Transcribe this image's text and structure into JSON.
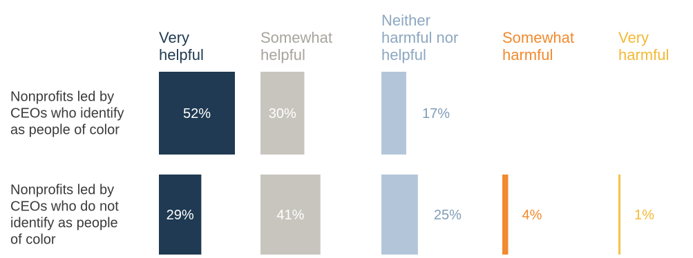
{
  "chart_data": {
    "type": "bar",
    "title": "",
    "xlabel": "",
    "ylabel": "",
    "xlim": [
      0,
      60
    ],
    "grid": false,
    "legend": "top",
    "categories": [
      "Nonprofits led by CEOs who identify as people of color",
      "Nonprofits led by CEOs who do not identify as people of color"
    ],
    "category_lines": [
      [
        "Nonprofits led by",
        "CEOs who identify",
        "as people of color"
      ],
      [
        "Nonprofits led by",
        "CEOs who do not",
        "identify as people",
        "of color"
      ]
    ],
    "series": [
      {
        "name": "Very helpful",
        "header_lines": [
          "Very",
          "helpful"
        ],
        "color": "#1f3a52",
        "header_color": "#1f3a52",
        "label_color": "#ffffff",
        "values": [
          52,
          29
        ],
        "labels": [
          "52%",
          "29%"
        ]
      },
      {
        "name": "Somewhat helpful",
        "header_lines": [
          "Somewhat",
          "helpful"
        ],
        "color": "#c8c5be",
        "header_color": "#a7a49c",
        "label_color": "#ffffff",
        "values": [
          30,
          41
        ],
        "labels": [
          "30%",
          "41%"
        ]
      },
      {
        "name": "Neither harmful nor helpful",
        "header_lines": [
          "Neither",
          "harmful nor",
          "helpful"
        ],
        "color": "#b3c6d9",
        "header_color": "#8ca7c1",
        "label_color": "#7f9cb8",
        "values": [
          17,
          25
        ],
        "labels": [
          "17%",
          "25%"
        ]
      },
      {
        "name": "Somewhat harmful",
        "header_lines": [
          "Somewhat",
          "harmful"
        ],
        "color": "#f28a2e",
        "header_color": "#f28a2e",
        "label_color": "#f28a2e",
        "values": [
          0,
          4
        ],
        "labels": [
          "",
          "4%"
        ]
      },
      {
        "name": "Very harmful",
        "header_lines": [
          "Very",
          "harmful"
        ],
        "color": "#f6c24a",
        "header_color": "#f3b935",
        "label_color": "#f3b935",
        "values": [
          0,
          1
        ],
        "labels": [
          "",
          "1%"
        ]
      }
    ]
  }
}
